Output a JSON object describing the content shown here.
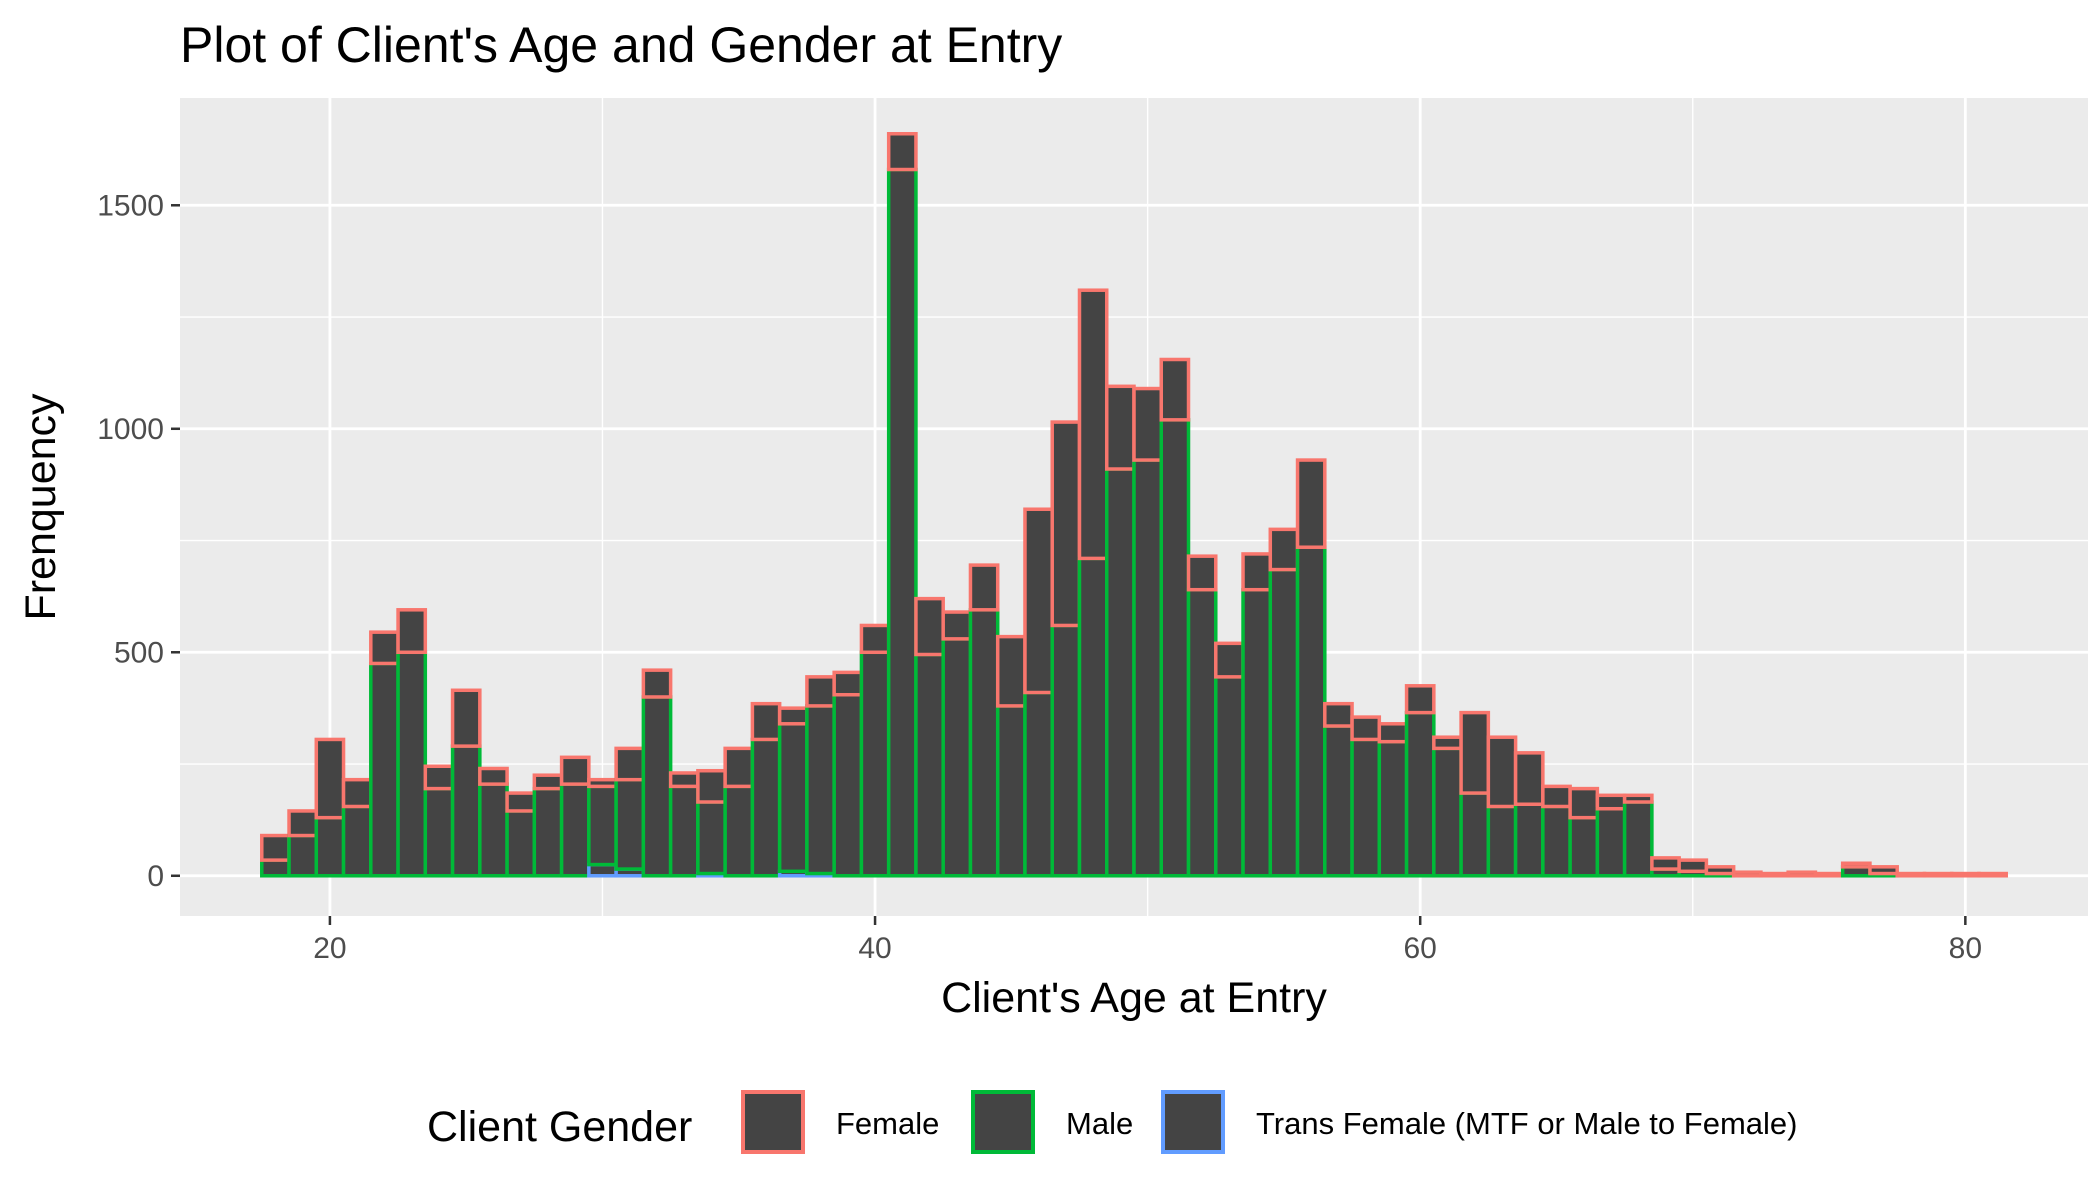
{
  "chart_data": {
    "type": "bar",
    "subtype": "stacked-histogram",
    "title": "Plot of Client's Age and Gender at Entry",
    "xlabel": "Client's Age at Entry",
    "ylabel": "Frenquency",
    "xlim": [
      14.5,
      84.5
    ],
    "ylim": [
      -90,
      1740
    ],
    "x_ticks": [
      20,
      40,
      60,
      80
    ],
    "y_ticks": [
      0,
      500,
      1000,
      1500
    ],
    "grid": true,
    "legend": {
      "title": "Client Gender",
      "position": "bottom",
      "entries": [
        "Female",
        "Male",
        "Trans Female (MTF or Male to Female)"
      ]
    },
    "bin_width": 1,
    "x": [
      18,
      19,
      20,
      21,
      22,
      23,
      24,
      25,
      26,
      27,
      28,
      29,
      30,
      31,
      32,
      33,
      34,
      35,
      36,
      37,
      38,
      39,
      40,
      41,
      42,
      43,
      44,
      45,
      46,
      47,
      48,
      49,
      50,
      51,
      52,
      53,
      54,
      55,
      56,
      57,
      58,
      59,
      60,
      61,
      62,
      63,
      64,
      65,
      66,
      67,
      68,
      69,
      70,
      71,
      72,
      73,
      74,
      75,
      76,
      77,
      78,
      79,
      80,
      81
    ],
    "series": [
      {
        "name": "Female",
        "color": "#F8766D",
        "values": [
          55,
          55,
          175,
          60,
          70,
          95,
          50,
          125,
          35,
          40,
          30,
          60,
          15,
          70,
          60,
          30,
          70,
          85,
          80,
          35,
          65,
          50,
          60,
          80,
          125,
          60,
          100,
          155,
          410,
          455,
          600,
          185,
          160,
          135,
          75,
          75,
          80,
          90,
          195,
          50,
          50,
          40,
          60,
          25,
          180,
          155,
          115,
          45,
          65,
          30,
          15,
          25,
          25,
          15,
          8,
          5,
          8,
          5,
          8,
          15,
          5,
          5,
          5,
          5
        ]
      },
      {
        "name": "Male",
        "color": "#00BA38",
        "values": [
          35,
          90,
          130,
          155,
          475,
          500,
          195,
          290,
          205,
          145,
          195,
          205,
          175,
          200,
          400,
          200,
          160,
          200,
          305,
          330,
          375,
          405,
          500,
          1580,
          495,
          530,
          595,
          380,
          410,
          560,
          710,
          910,
          930,
          1020,
          640,
          445,
          640,
          685,
          735,
          335,
          305,
          300,
          365,
          285,
          185,
          155,
          160,
          155,
          130,
          150,
          165,
          15,
          10,
          5,
          0,
          0,
          0,
          0,
          20,
          5,
          0,
          0,
          0,
          0
        ]
      },
      {
        "name": "Trans Female (MTF or Male to Female)",
        "color": "#619CFF",
        "values": [
          0,
          0,
          0,
          0,
          0,
          0,
          0,
          0,
          0,
          0,
          0,
          0,
          25,
          15,
          0,
          0,
          5,
          0,
          0,
          10,
          5,
          0,
          0,
          0,
          0,
          0,
          0,
          0,
          0,
          0,
          0,
          0,
          0,
          0,
          0,
          0,
          0,
          0,
          0,
          0,
          0,
          0,
          0,
          0,
          0,
          0,
          0,
          0,
          0,
          0,
          0,
          0,
          0,
          0,
          0,
          0,
          0,
          0,
          0,
          0,
          0,
          0,
          0,
          0
        ]
      }
    ]
  }
}
